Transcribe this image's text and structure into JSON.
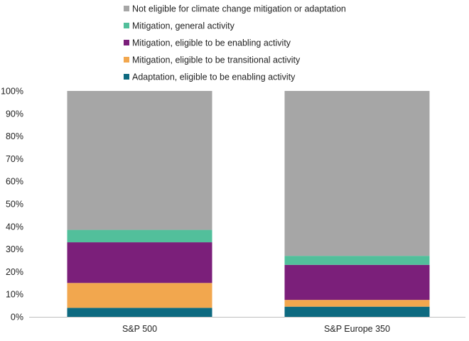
{
  "chart_data": {
    "type": "bar",
    "stacked": true,
    "categories": [
      "S&P 500",
      "S&P Europe 350"
    ],
    "series": [
      {
        "name": "Adaptation, eligible to be enabling activity",
        "color": "#0e6a80",
        "values": [
          4,
          4.5
        ]
      },
      {
        "name": "Mitigation, eligible to be transitional activity",
        "color": "#f2a74e",
        "values": [
          11,
          3
        ]
      },
      {
        "name": "Mitigation, eligible to be enabling activity",
        "color": "#7b1f7a",
        "values": [
          18,
          15.5
        ]
      },
      {
        "name": "Mitigation, general activity",
        "color": "#52bf9b",
        "values": [
          5.5,
          4
        ]
      },
      {
        "name": "Not eligible for climate change mitigation or adaptation",
        "color": "#a6a6a6",
        "values": [
          61.5,
          73
        ]
      }
    ],
    "ylim": [
      0,
      100
    ],
    "yticks": [
      "0%",
      "10%",
      "20%",
      "30%",
      "40%",
      "50%",
      "60%",
      "70%",
      "80%",
      "90%",
      "100%"
    ],
    "grid": false,
    "legend_position": "top"
  }
}
